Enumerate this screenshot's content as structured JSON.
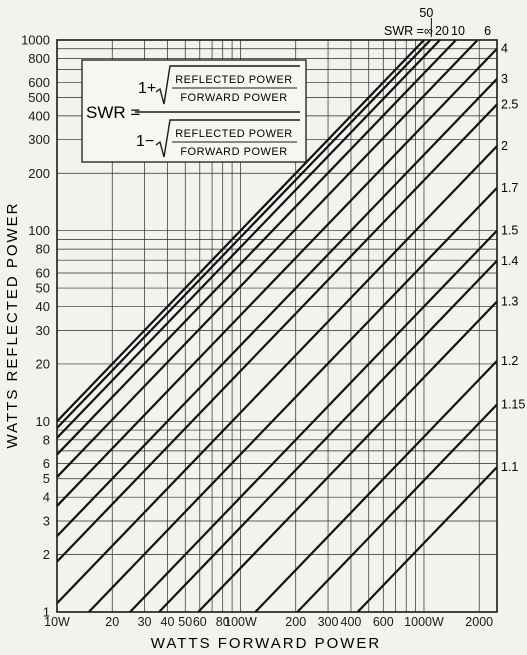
{
  "chart_data": {
    "type": "line",
    "title": "",
    "xlabel": "WATTS FORWARD POWER",
    "ylabel": "WATTS REFLECTED POWER",
    "xscale": "log",
    "yscale": "log",
    "xlim": [
      10,
      2500
    ],
    "ylim": [
      1,
      1000
    ],
    "grid": true,
    "x_ticks": [
      10,
      20,
      30,
      40,
      50,
      60,
      80,
      100,
      200,
      300,
      400,
      600,
      1000,
      2000
    ],
    "x_tick_labels": [
      "10W",
      "20",
      "30",
      "40",
      "50",
      "60",
      "80",
      "100W",
      "200",
      "300",
      "400",
      "600",
      "1000W",
      "2000"
    ],
    "y_ticks": [
      1,
      2,
      3,
      4,
      5,
      6,
      8,
      10,
      20,
      30,
      40,
      50,
      60,
      80,
      100,
      200,
      300,
      400,
      500,
      600,
      800,
      1000
    ],
    "y_tick_labels": [
      "1",
      "2",
      "3",
      "4",
      "5",
      "6",
      "8",
      "10",
      "20",
      "30",
      "40",
      "50",
      "60",
      "80",
      "100",
      "200",
      "300",
      "400",
      "500",
      "600",
      "800",
      "1000"
    ],
    "series_relation": "reflected = forward × ((SWR − 1)/(SWR + 1))²",
    "series": [
      {
        "label": "∞",
        "swr": "inf",
        "ratio": 1.0
      },
      {
        "label": "50",
        "swr": 50,
        "ratio": 0.9231
      },
      {
        "label": "20",
        "swr": 20,
        "ratio": 0.8186
      },
      {
        "label": "10",
        "swr": 10,
        "ratio": 0.6694
      },
      {
        "label": "6",
        "swr": 6,
        "ratio": 0.5102
      },
      {
        "label": "4",
        "swr": 4,
        "ratio": 0.36
      },
      {
        "label": "3",
        "swr": 3,
        "ratio": 0.25
      },
      {
        "label": "2.5",
        "swr": 2.5,
        "ratio": 0.1837
      },
      {
        "label": "2",
        "swr": 2,
        "ratio": 0.1111
      },
      {
        "label": "1.7",
        "swr": 1.7,
        "ratio": 0.0671
      },
      {
        "label": "1.5",
        "swr": 1.5,
        "ratio": 0.04
      },
      {
        "label": "1.4",
        "swr": 1.4,
        "ratio": 0.0278
      },
      {
        "label": "1.3",
        "swr": 1.3,
        "ratio": 0.017
      },
      {
        "label": "1.2",
        "swr": 1.2,
        "ratio": 0.0083
      },
      {
        "label": "1.15",
        "swr": 1.15,
        "ratio": 0.0049
      },
      {
        "label": "1.1",
        "swr": 1.1,
        "ratio": 0.0023
      }
    ],
    "swr_header_prefix": "SWR =",
    "formula": {
      "lhs": "SWR =",
      "one_plus": "1+",
      "one_minus": "1−",
      "numerator_top": "REFLECTED POWER",
      "denominator_bottom": "FORWARD POWER"
    }
  }
}
